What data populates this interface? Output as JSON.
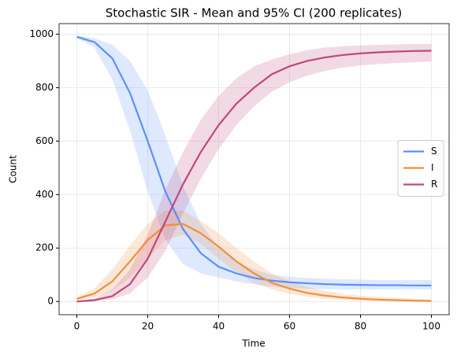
{
  "chart_data": {
    "type": "line",
    "title": "Stochastic SIR - Mean and 95% CI (200 replicates)",
    "x_label": "Time",
    "y_label": "Count",
    "x": [
      0,
      5,
      10,
      15,
      20,
      25,
      30,
      35,
      40,
      45,
      50,
      55,
      60,
      65,
      70,
      75,
      80,
      85,
      90,
      95,
      100
    ],
    "series": [
      {
        "name": "S",
        "color": "#5b8ff9",
        "values": [
          990,
          970,
          910,
          780,
          600,
          410,
          270,
          180,
          130,
          105,
          88,
          78,
          72,
          68,
          65,
          63,
          62,
          61,
          61,
          60,
          60
        ],
        "lower": [
          985,
          950,
          830,
          640,
          410,
          230,
          140,
          105,
          90,
          75,
          65,
          55,
          50,
          48,
          46,
          45,
          45,
          45,
          45,
          45,
          45
        ],
        "upper": [
          995,
          985,
          960,
          900,
          790,
          620,
          430,
          290,
          200,
          150,
          120,
          100,
          92,
          88,
          85,
          83,
          82,
          80,
          80,
          80,
          80
        ]
      },
      {
        "name": "I",
        "color": "#f28e3b",
        "values": [
          10,
          30,
          75,
          150,
          230,
          285,
          290,
          255,
          205,
          150,
          105,
          70,
          48,
          32,
          22,
          15,
          10,
          7,
          5,
          3,
          2
        ],
        "lower": [
          5,
          15,
          40,
          90,
          160,
          230,
          250,
          215,
          160,
          110,
          70,
          45,
          28,
          18,
          10,
          6,
          4,
          2,
          1,
          0,
          0
        ],
        "upper": [
          15,
          50,
          120,
          210,
          290,
          340,
          340,
          300,
          255,
          200,
          150,
          105,
          75,
          55,
          40,
          30,
          22,
          17,
          13,
          10,
          8
        ]
      },
      {
        "name": "R",
        "color": "#c0487a",
        "values": [
          0,
          5,
          20,
          65,
          160,
          300,
          440,
          560,
          660,
          740,
          800,
          850,
          880,
          900,
          913,
          922,
          928,
          932,
          935,
          937,
          938
        ],
        "lower": [
          0,
          2,
          8,
          30,
          90,
          190,
          330,
          460,
          570,
          660,
          730,
          785,
          820,
          845,
          862,
          875,
          883,
          888,
          892,
          895,
          897
        ],
        "upper": [
          0,
          12,
          45,
          120,
          250,
          420,
          560,
          680,
          770,
          835,
          880,
          905,
          925,
          940,
          950,
          955,
          958,
          960,
          962,
          963,
          964
        ]
      }
    ],
    "xlim": [
      -5,
      105
    ],
    "ylim": [
      -49.5,
      1039.5
    ],
    "xticks": [
      0,
      20,
      40,
      60,
      80,
      100
    ],
    "yticks": [
      0,
      200,
      400,
      600,
      800,
      1000
    ],
    "grid": true,
    "legend": "right"
  }
}
